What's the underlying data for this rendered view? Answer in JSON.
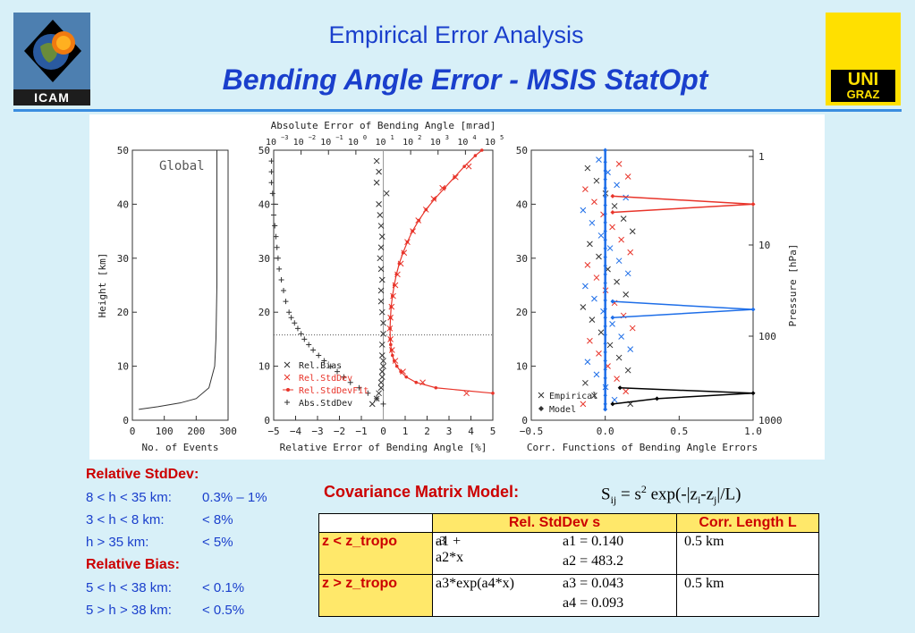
{
  "header": {
    "title": "Empirical Error Analysis",
    "subtitle": "Bending Angle Error - MSIS StatOpt",
    "logo_left_text": "ICAM",
    "logo_right_line1": "UNI",
    "logo_right_line2": "GRAZ"
  },
  "colors": {
    "title": "#1a3fcc",
    "accent": "#cc0000",
    "rel_stddev": "#e8342a",
    "model_blue": "#1e6ee8"
  },
  "chart_data": [
    {
      "type": "line",
      "panel_label": "Global",
      "xlabel": "No. of Events",
      "ylabel": "Height [km]",
      "xlim": [
        0,
        300
      ],
      "ylim": [
        0,
        50
      ],
      "xticks": [
        "0",
        "100",
        "200",
        "300"
      ],
      "yticks": [
        "0",
        "10",
        "20",
        "30",
        "40",
        "50"
      ],
      "series": [
        {
          "x": [
            20,
            80,
            150,
            200,
            240,
            258,
            262,
            265,
            265
          ],
          "y": [
            2,
            2.5,
            3.2,
            4,
            6,
            10,
            15,
            25,
            50
          ]
        }
      ]
    },
    {
      "type": "scatter",
      "xlabel": "Relative Error of Bending Angle [%]",
      "xlabel_top": "Absolute Error of Bending Angle [mrad]",
      "xlim": [
        -5,
        5
      ],
      "ylim": [
        0,
        50
      ],
      "xticks": [
        "−5",
        "−4",
        "−3",
        "−2",
        "−1",
        "0",
        "1",
        "2",
        "3",
        "4",
        "5"
      ],
      "xticks_top": [
        "10",
        "10",
        "10",
        "10",
        "10",
        "10",
        "10",
        "10",
        "10"
      ],
      "xticks_top_exp": [
        "−3",
        "−2",
        "−1",
        "0",
        "1",
        "2",
        "3",
        "4",
        "5"
      ],
      "yticks": [
        "0",
        "10",
        "20",
        "30",
        "40",
        "50"
      ],
      "hline_y": 15.8,
      "legend": [
        "Rel.Bias",
        "Rel.StdDev",
        "Rel.StdDevFit",
        "Abs.StdDev"
      ],
      "legend_placement": "bottom-left",
      "series": [
        {
          "name": "Rel.Bias",
          "y": [
            3,
            4,
            5,
            6,
            7,
            8,
            9,
            10,
            11,
            12,
            14,
            16,
            18,
            20,
            22,
            24,
            26,
            28,
            30,
            32,
            34,
            36,
            38,
            40,
            42,
            44,
            46,
            48
          ],
          "x": [
            -0.5,
            -0.3,
            -0.2,
            -0.1,
            -0.1,
            -0.05,
            -0.05,
            0.0,
            0.0,
            -0.05,
            -0.05,
            0.0,
            0.0,
            -0.05,
            -0.1,
            -0.1,
            -0.05,
            -0.1,
            -0.15,
            -0.1,
            -0.05,
            -0.1,
            -0.15,
            -0.2,
            0.15,
            -0.3,
            -0.2,
            -0.3
          ]
        },
        {
          "name": "Rel.StdDev",
          "y": [
            5,
            7,
            9,
            11,
            13,
            15,
            17,
            19,
            21,
            23,
            25,
            27,
            29,
            31,
            33,
            35,
            37,
            39,
            41,
            43,
            45,
            47
          ],
          "x": [
            3.8,
            1.8,
            0.9,
            0.55,
            0.4,
            0.33,
            0.3,
            0.33,
            0.38,
            0.45,
            0.55,
            0.65,
            0.8,
            0.95,
            1.1,
            1.35,
            1.6,
            1.95,
            2.3,
            2.7,
            3.3,
            3.9
          ]
        },
        {
          "name": "Rel.StdDevFit",
          "y": [
            5,
            6,
            7,
            8,
            9,
            10,
            11,
            12,
            13,
            14,
            15,
            17,
            19,
            21,
            23,
            25,
            27,
            29,
            31,
            33,
            35,
            37,
            39,
            41,
            43,
            45,
            47,
            49,
            50
          ],
          "x": [
            5.0,
            2.4,
            1.5,
            1.05,
            0.8,
            0.62,
            0.5,
            0.42,
            0.37,
            0.34,
            0.32,
            0.31,
            0.33,
            0.36,
            0.42,
            0.5,
            0.6,
            0.73,
            0.9,
            1.1,
            1.33,
            1.62,
            1.95,
            2.35,
            2.8,
            3.25,
            3.7,
            4.2,
            4.5
          ]
        },
        {
          "name": "Abs.StdDev",
          "y": [
            3,
            4,
            5,
            6,
            7,
            8,
            9,
            10,
            11,
            12,
            13,
            14,
            15,
            16,
            17,
            18,
            19,
            20,
            22,
            24,
            26,
            28,
            30,
            32,
            34,
            36,
            38,
            40,
            42,
            44,
            46,
            48
          ],
          "x": [
            0.0,
            -0.3,
            -0.7,
            -1.1,
            -1.5,
            -1.8,
            -2.1,
            -2.4,
            -2.7,
            -2.95,
            -3.2,
            -3.4,
            -3.6,
            -3.75,
            -3.9,
            -4.05,
            -4.2,
            -4.3,
            -4.45,
            -4.55,
            -4.65,
            -4.75,
            -4.8,
            -4.85,
            -4.9,
            -4.95,
            -5.0,
            -5.0,
            -5.05,
            -5.1,
            -5.1,
            -5.1
          ]
        }
      ]
    },
    {
      "type": "line",
      "xlabel": "Corr. Functions of Bending Angle Errors",
      "ylabel_right": "Pressure [hPa]",
      "xlim": [
        -0.5,
        1.0
      ],
      "ylim": [
        0,
        50
      ],
      "xticks": [
        "−0.5",
        "0.0",
        "0.5",
        "1.0"
      ],
      "yticks": [
        "0",
        "10",
        "20",
        "30",
        "40",
        "50"
      ],
      "yticks_right": [
        "1",
        "10",
        "100",
        "1000"
      ],
      "legend": [
        "Empirical",
        "Model"
      ],
      "legend_placement": "bottom-left",
      "series": [
        {
          "name": "Model",
          "color": "#e8342a",
          "y": [
            38.5,
            40,
            41.5
          ],
          "x": [
            0.05,
            1.0,
            0.05
          ]
        },
        {
          "name": "Model",
          "color": "#1e6ee8",
          "y": [
            19,
            20.5,
            22
          ],
          "x": [
            0.05,
            1.0,
            0.05
          ]
        },
        {
          "name": "Model",
          "color": "#000000",
          "y": [
            3,
            4,
            5,
            6
          ],
          "x": [
            0.05,
            0.35,
            1.0,
            0.1
          ]
        },
        {
          "name": "Model",
          "color": "#1e6ee8",
          "y": [
            2,
            50
          ],
          "x": [
            0.0,
            0.0
          ]
        }
      ]
    }
  ],
  "notes": {
    "rel_stddev_heading": "Relative StdDev:",
    "l1_range": "8 < h < 35 km:",
    "l1_value": "0.3% – 1%",
    "l2_range": "3 < h < 8 km:",
    "l2_value": "< 8%",
    "l3_range": "h > 35 km:",
    "l3_value": "< 5%",
    "rel_bias_heading": "Relative Bias:",
    "l4_range": "5 < h < 38 km:",
    "l4_value": "< 0.1%",
    "l5_range": "5 > h > 38 km:",
    "l5_value": "< 0.5%"
  },
  "cov": {
    "title": "Covariance Matrix Model:",
    "formula": "S",
    "formula_sub": "ij",
    "formula_mid": " = s",
    "formula_sup": "2",
    "formula_tail": " exp(-|z",
    "formula_i": "i",
    "formula_dash": "-z",
    "formula_j": "j",
    "formula_end": "|/L)",
    "col1": "Rel. StdDev s",
    "col2": "Corr. Length L",
    "row1_label": "z < z_tropo",
    "row1_expr": "a1 + a2*x",
    "row1_exp": "-3",
    "row1_p1": "a1 = 0.140",
    "row1_p2": "a2 = 483.2",
    "row1_L": "0.5 km",
    "row2_label": "z > z_tropo",
    "row2_expr": "a3*exp(a4*x)",
    "row2_p1": "a3 = 0.043",
    "row2_p2": "a4 = 0.093",
    "row2_L": "0.5 km"
  }
}
